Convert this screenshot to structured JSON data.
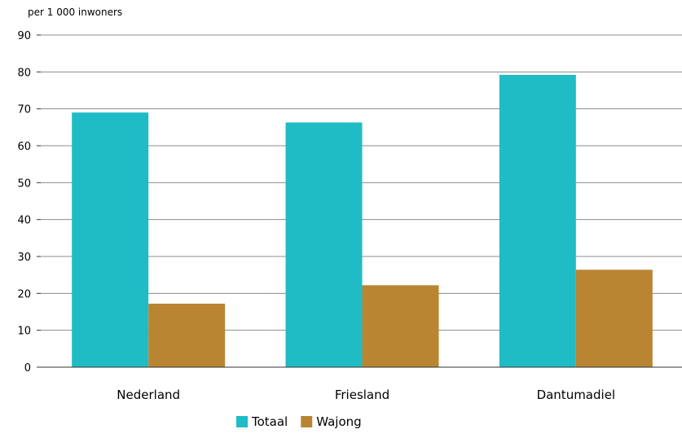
{
  "chart_data": {
    "type": "bar",
    "unit_label": "per 1 000 inwoners",
    "categories": [
      "Nederland",
      "Friesland",
      "Dantumadiel"
    ],
    "series": [
      {
        "name": "Totaal",
        "values": [
          69,
          66.3,
          79.2
        ],
        "color": "#1fbcc6"
      },
      {
        "name": "Wajong",
        "values": [
          17.2,
          22.2,
          26.4
        ],
        "color": "#b98533"
      }
    ],
    "ylim": [
      0,
      90
    ],
    "yticks": [
      "0",
      "10",
      "20",
      "30",
      "40",
      "50",
      "60",
      "70",
      "80",
      "90"
    ],
    "grid": true,
    "legend_position": "bottom-center"
  }
}
